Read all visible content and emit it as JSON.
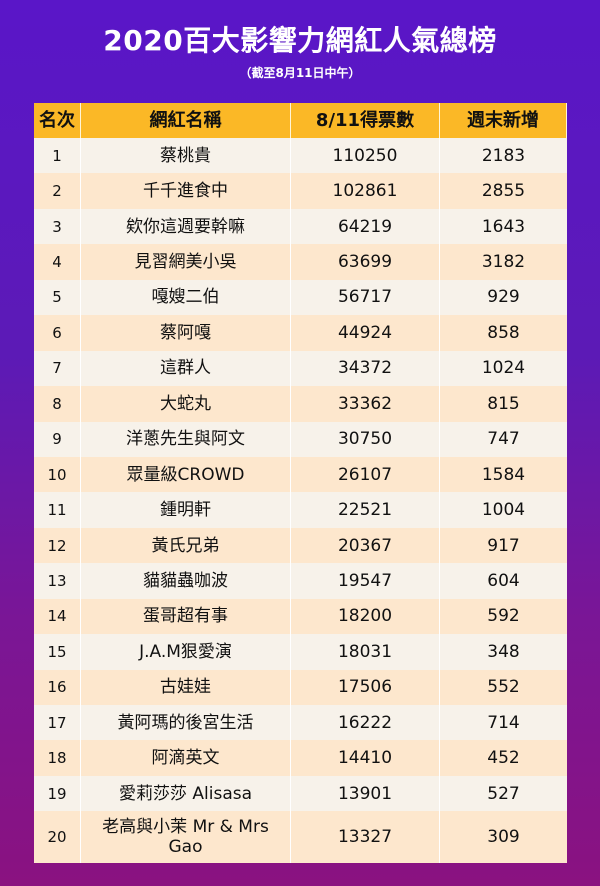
{
  "title": "2020百大影響力網紅人氣總榜",
  "subtitle": "（截至8月11日中午）",
  "table": {
    "headers": [
      "名次",
      "網紅名稱",
      "8/11得票數",
      "週末新增"
    ],
    "rows": [
      {
        "rank": "1",
        "name": "蔡桃貴",
        "votes": "110250",
        "weekend": "2183"
      },
      {
        "rank": "2",
        "name": "千千進食中",
        "votes": "102861",
        "weekend": "2855"
      },
      {
        "rank": "3",
        "name": "欸你這週要幹嘛",
        "votes": "64219",
        "weekend": "1643"
      },
      {
        "rank": "4",
        "name": "見習網美小吳",
        "votes": "63699",
        "weekend": "3182"
      },
      {
        "rank": "5",
        "name": "嘎嫂二伯",
        "votes": "56717",
        "weekend": "929"
      },
      {
        "rank": "6",
        "name": "蔡阿嘎",
        "votes": "44924",
        "weekend": "858"
      },
      {
        "rank": "7",
        "name": "這群人",
        "votes": "34372",
        "weekend": "1024"
      },
      {
        "rank": "8",
        "name": "大蛇丸",
        "votes": "33362",
        "weekend": "815"
      },
      {
        "rank": "9",
        "name": "洋蔥先生與阿文",
        "votes": "30750",
        "weekend": "747"
      },
      {
        "rank": "10",
        "name": "眾量級CROWD",
        "votes": "26107",
        "weekend": "1584"
      },
      {
        "rank": "11",
        "name": "鍾明軒",
        "votes": "22521",
        "weekend": "1004"
      },
      {
        "rank": "12",
        "name": "黃氏兄弟",
        "votes": "20367",
        "weekend": "917"
      },
      {
        "rank": "13",
        "name": "貓貓蟲咖波",
        "votes": "19547",
        "weekend": "604"
      },
      {
        "rank": "14",
        "name": "蛋哥超有事",
        "votes": "18200",
        "weekend": "592"
      },
      {
        "rank": "15",
        "name": "J.A.M狠愛演",
        "votes": "18031",
        "weekend": "348"
      },
      {
        "rank": "16",
        "name": "古娃娃",
        "votes": "17506",
        "weekend": "552"
      },
      {
        "rank": "17",
        "name": "黃阿瑪的後宮生活",
        "votes": "16222",
        "weekend": "714"
      },
      {
        "rank": "18",
        "name": "阿滴英文",
        "votes": "14410",
        "weekend": "452"
      },
      {
        "rank": "19",
        "name": "愛莉莎莎 Alisasa",
        "votes": "13901",
        "weekend": "527"
      },
      {
        "rank": "20",
        "name": "老高與小茉 Mr & Mrs Gao",
        "votes": "13327",
        "weekend": "309"
      }
    ]
  },
  "colors": {
    "header_bg": "#fbb826",
    "row_light": "#f7f2ea",
    "row_peach": "#fde7cd",
    "background_top": "#5a16c8",
    "background_bottom": "#8a1280"
  }
}
